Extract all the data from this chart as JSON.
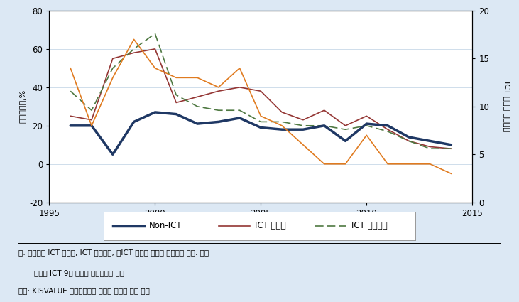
{
  "years": [
    1996,
    1997,
    1998,
    1999,
    2000,
    2001,
    2002,
    2003,
    2004,
    2005,
    2006,
    2007,
    2008,
    2009,
    2010,
    2011,
    2012,
    2013,
    2014
  ],
  "non_ict": [
    20,
    20,
    5,
    22,
    27,
    26,
    21,
    22,
    24,
    19,
    18,
    18,
    20,
    12,
    21,
    20,
    14,
    12,
    10
  ],
  "ict_manufacturing": [
    25,
    23,
    55,
    58,
    60,
    32,
    35,
    38,
    40,
    38,
    27,
    23,
    28,
    20,
    25,
    18,
    12,
    9,
    8
  ],
  "ict_services": [
    38,
    28,
    50,
    60,
    68,
    36,
    30,
    28,
    28,
    22,
    22,
    20,
    20,
    18,
    20,
    17,
    12,
    8,
    8
  ],
  "std_dev": [
    14,
    8,
    13,
    17,
    14,
    13,
    13,
    12,
    14,
    9,
    8,
    6,
    4,
    4,
    7,
    4,
    4,
    4,
    3
  ],
  "left_ylim": [
    -20,
    80
  ],
  "left_yticks": [
    -20,
    0,
    20,
    40,
    60,
    80
  ],
  "right_ylim": [
    0,
    20
  ],
  "right_yticks": [
    0,
    5,
    10,
    15,
    20
  ],
  "xlim": [
    1995,
    2015
  ],
  "xticks": [
    1995,
    2000,
    2005,
    2010,
    2015
  ],
  "fig_bg_color": "#dce8f4",
  "plot_bg_color": "#ffffff",
  "non_ict_color": "#1f3864",
  "ict_mfg_color": "#943634",
  "ict_svc_color": "#4f7942",
  "std_dev_color": "#e07b20",
  "ylabel_left": "매입증가율,%",
  "ylabel_right": "ICT 업종간 표준편차",
  "legend_non_ict": "Non-ICT",
  "legend_ict_mfg": "ICT 제조업",
  "legend_ict_svc": "ICT 서비스업",
  "note1": "주: 증가율은 ICT 제조업, ICT 서비스업, 비ICT 산업의 증가율 평균으로 계산. 표준",
  "note2": "편차는 ICT 9개 업종의 표준편차로 계산",
  "note3": "자료: KISVALUE 재무데이터를 이용해 저자가 직접 계산"
}
